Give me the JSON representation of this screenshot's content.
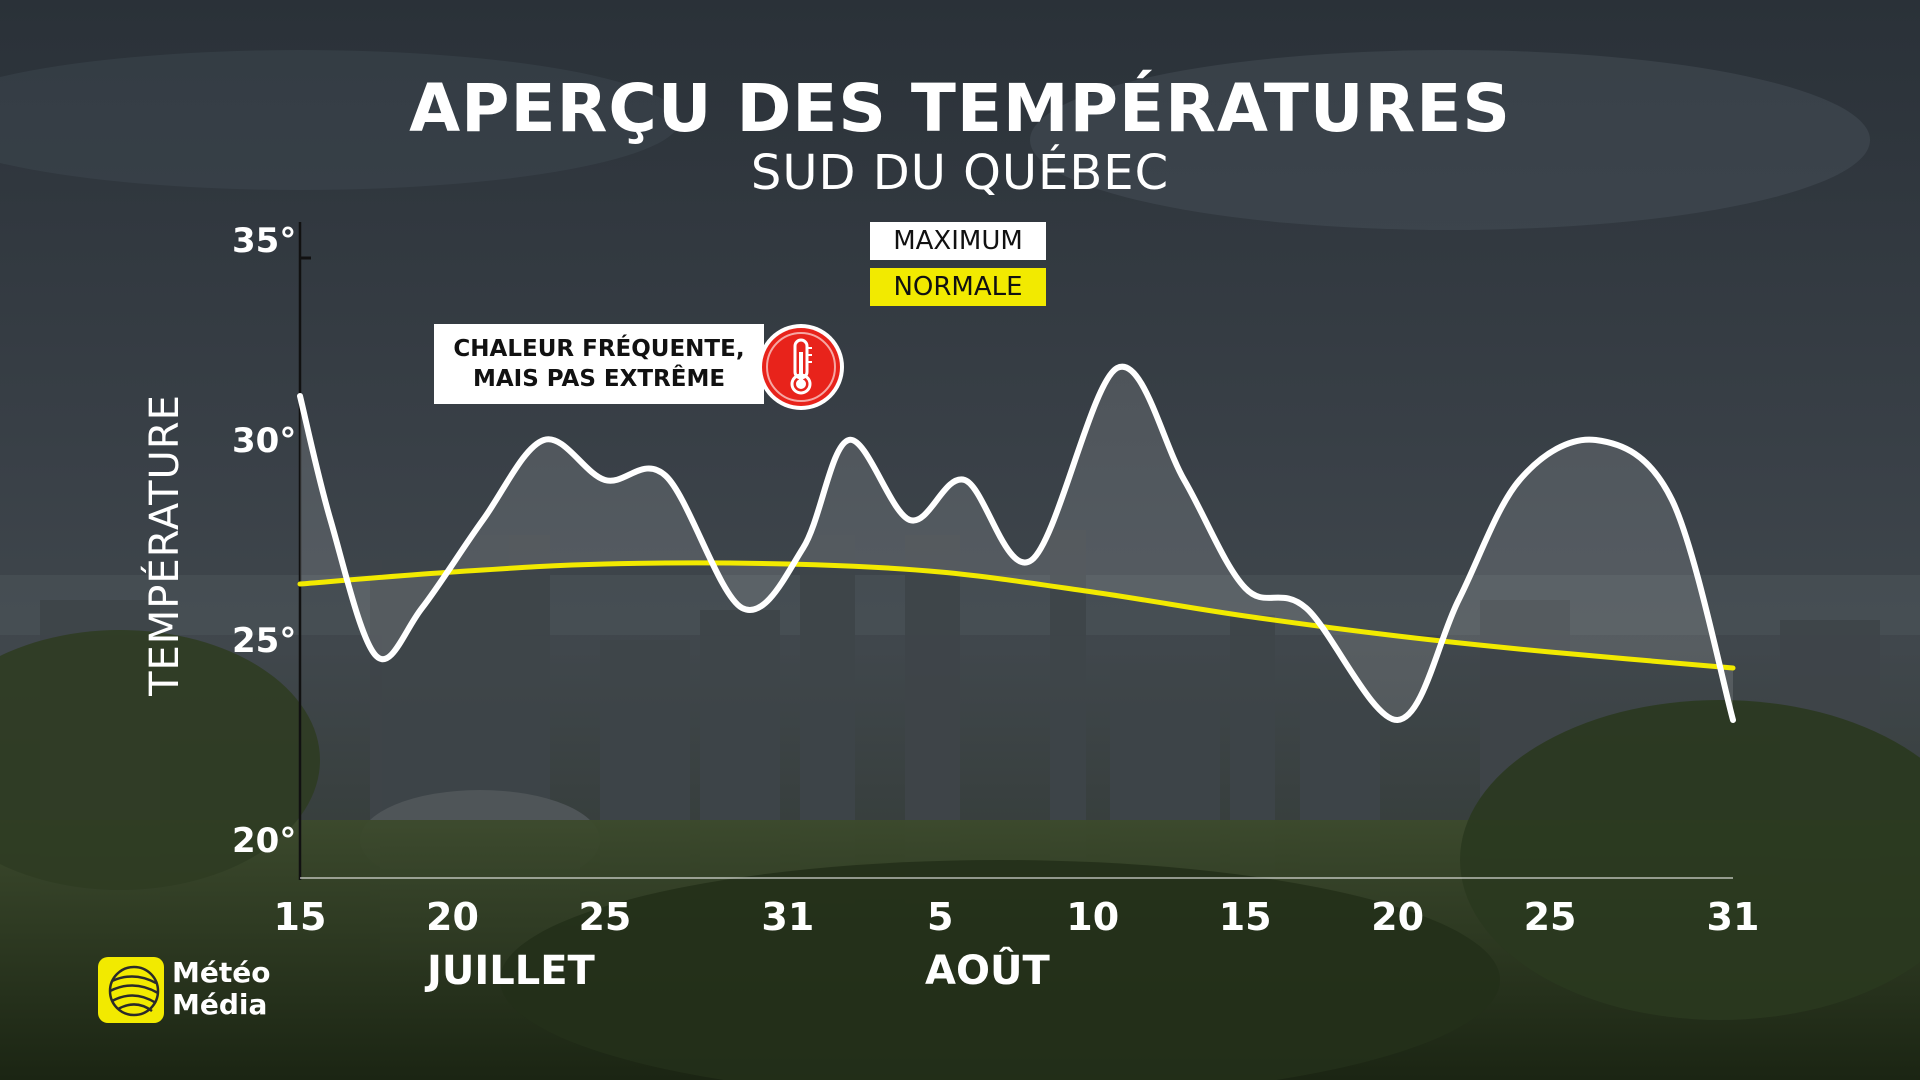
{
  "title": "APERÇU DES TEMPÉRATURES",
  "subtitle": "SUD DU QUÉBEC",
  "legend": {
    "maximum": "MAXIMUM",
    "normale": "NORMALE"
  },
  "callout": {
    "line1": "CHALEUR FRÉQUENTE,",
    "line2": "MAIS PAS EXTRÊME",
    "icon": "thermometer-icon"
  },
  "logo": {
    "line1": "Météo",
    "line2": "Média"
  },
  "colors": {
    "maximum": "#ffffff",
    "normale": "#f2ea00",
    "alert": "#e8231b",
    "brand": "#f2ea00"
  },
  "chart_data": {
    "type": "line",
    "ylabel": "TEMPÉRATURE",
    "ylim": [
      19,
      36
    ],
    "xlim": [
      0,
      47
    ],
    "y_ticks": [
      {
        "value": 35,
        "label": "35°"
      },
      {
        "value": 30,
        "label": "30°"
      },
      {
        "value": 25,
        "label": "25°"
      },
      {
        "value": 20,
        "label": "20°"
      }
    ],
    "x_ticks": [
      {
        "value": 0,
        "label": "15"
      },
      {
        "value": 5,
        "label": "20"
      },
      {
        "value": 10,
        "label": "25"
      },
      {
        "value": 16,
        "label": "31"
      },
      {
        "value": 21,
        "label": "5"
      },
      {
        "value": 26,
        "label": "10"
      },
      {
        "value": 31,
        "label": "15"
      },
      {
        "value": 36,
        "label": "20"
      },
      {
        "value": 41,
        "label": "25"
      },
      {
        "value": 47,
        "label": "31"
      }
    ],
    "months": [
      "JUILLET",
      "AOÛT"
    ],
    "series": [
      {
        "name": "MAXIMUM",
        "color": "#ffffff",
        "points": [
          [
            0,
            31.1
          ],
          [
            1,
            28.0
          ],
          [
            2.5,
            24.6
          ],
          [
            4,
            25.8
          ],
          [
            6,
            28.0
          ],
          [
            8,
            30.0
          ],
          [
            10,
            29.0
          ],
          [
            12,
            29.1
          ],
          [
            14.5,
            25.8
          ],
          [
            16.5,
            27.3
          ],
          [
            18,
            30.0
          ],
          [
            20,
            28.0
          ],
          [
            21.8,
            29.0
          ],
          [
            24,
            27.0
          ],
          [
            26.8,
            31.8
          ],
          [
            29,
            29.0
          ],
          [
            31,
            26.3
          ],
          [
            33,
            25.8
          ],
          [
            36,
            23.0
          ],
          [
            38,
            26.0
          ],
          [
            40,
            29.0
          ],
          [
            42.5,
            30.0
          ],
          [
            45,
            28.5
          ],
          [
            47,
            23.0
          ]
        ]
      },
      {
        "name": "NORMALE",
        "color": "#f2ea00",
        "points": [
          [
            0,
            26.4
          ],
          [
            5,
            26.7
          ],
          [
            10,
            26.9
          ],
          [
            16,
            26.9
          ],
          [
            21,
            26.7
          ],
          [
            26,
            26.2
          ],
          [
            31,
            25.6
          ],
          [
            36,
            25.1
          ],
          [
            41,
            24.7
          ],
          [
            47,
            24.3
          ]
        ]
      }
    ]
  }
}
